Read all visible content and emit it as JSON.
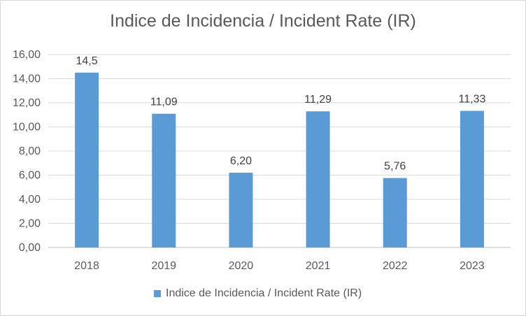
{
  "chart_data": {
    "type": "bar",
    "title": "Indice de Incidencia / Incident Rate  (IR)",
    "categories": [
      "2018",
      "2019",
      "2020",
      "2021",
      "2022",
      "2023"
    ],
    "series": [
      {
        "name": "Indice de Incidencia / Incident Rate  (IR)",
        "values": [
          14.5,
          11.09,
          6.2,
          11.29,
          5.76,
          11.33
        ],
        "data_labels": [
          "14,5",
          "11,09",
          "6,20",
          "11,29",
          "5,76",
          "11,33"
        ],
        "color": "#5b9bd5"
      }
    ],
    "ylim": [
      0,
      16
    ],
    "ytick_labels": [
      "0,00",
      "2,00",
      "4,00",
      "6,00",
      "8,00",
      "10,00",
      "12,00",
      "14,00",
      "16,00"
    ],
    "xlabel": "",
    "ylabel": "",
    "grid": true,
    "legend_position": "bottom"
  }
}
